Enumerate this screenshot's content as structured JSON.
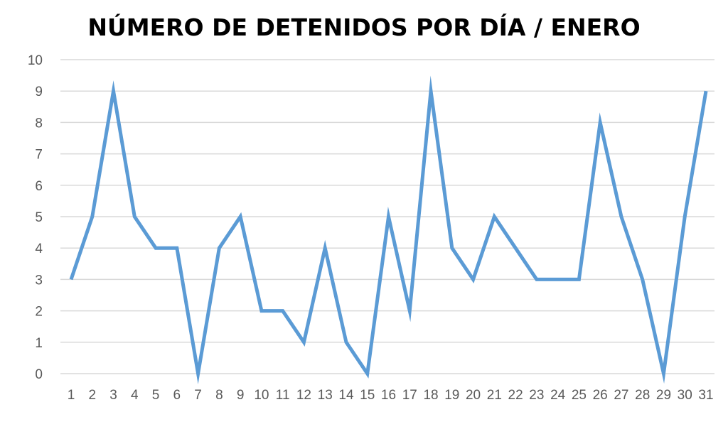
{
  "chart_data": {
    "type": "line",
    "title": "NÚMERO DE DETENIDOS POR DÍA / ENERO",
    "xlabel": "",
    "ylabel": "",
    "categories": [
      "1",
      "2",
      "3",
      "4",
      "5",
      "6",
      "7",
      "8",
      "9",
      "10",
      "11",
      "12",
      "13",
      "14",
      "15",
      "16",
      "17",
      "18",
      "19",
      "20",
      "21",
      "22",
      "23",
      "24",
      "25",
      "26",
      "27",
      "28",
      "29",
      "30",
      "31"
    ],
    "series": [
      {
        "name": "Detenidos",
        "color": "#5B9BD5",
        "values": [
          3,
          5,
          9,
          5,
          4,
          4,
          0,
          4,
          5,
          2,
          2,
          1,
          4,
          1,
          0,
          5,
          2,
          9,
          4,
          3,
          5,
          4,
          3,
          3,
          3,
          8,
          5,
          3,
          0,
          5,
          9
        ]
      }
    ],
    "ylim": [
      0,
      10
    ],
    "yticks": [
      "0",
      "1",
      "2",
      "3",
      "4",
      "5",
      "6",
      "7",
      "8",
      "9",
      "10"
    ],
    "grid": true,
    "legend": "none"
  }
}
